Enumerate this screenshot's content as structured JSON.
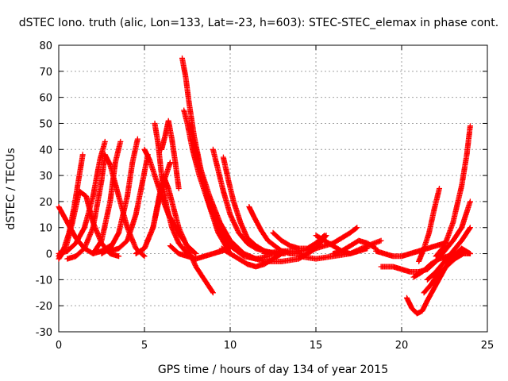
{
  "chart_data": {
    "type": "scatter",
    "title": "dSTEC Iono. truth (alic, Lon=133, Lat=-23, h=603): STEC-STEC_elemax in phase cont.",
    "xlabel": "GPS time / hours of day 134 of year 2015",
    "ylabel": "dSTEC  / TECUs",
    "xlim": [
      0,
      25
    ],
    "ylim": [
      -30,
      80
    ],
    "xticks": [
      "0",
      "5",
      "10",
      "15",
      "20",
      "25"
    ],
    "yticks": [
      "-30",
      "-20",
      "-10",
      "0",
      "10",
      "20",
      "30",
      "40",
      "50",
      "60",
      "70",
      "80"
    ],
    "grid": true,
    "legend": "none",
    "series_color": "#ff0000",
    "series": [
      {
        "x": [
          0.0,
          0.5,
          1.0,
          1.5,
          2.0,
          2.5,
          3.0
        ],
        "y": [
          18,
          12,
          6,
          2,
          0,
          1,
          3
        ]
      },
      {
        "x": [
          0.0,
          0.3,
          0.6,
          0.9,
          1.2,
          1.4
        ],
        "y": [
          -1,
          2,
          8,
          18,
          30,
          38
        ]
      },
      {
        "x": [
          0.0,
          0.4,
          0.8,
          1.2,
          1.6,
          2.0,
          2.5,
          3.0,
          3.5
        ],
        "y": [
          -2,
          2,
          12,
          24,
          22,
          12,
          4,
          0,
          -1
        ]
      },
      {
        "x": [
          0.0,
          0.5,
          1.0,
          1.5,
          2.0,
          2.4,
          2.7
        ],
        "y": [
          0,
          1,
          4,
          10,
          22,
          36,
          43
        ]
      },
      {
        "x": [
          0.5,
          1.0,
          1.5,
          2.0,
          2.5,
          2.7,
          3.0,
          3.5,
          4.0,
          4.5,
          5.0
        ],
        "y": [
          -2,
          -1,
          2,
          10,
          28,
          38,
          34,
          22,
          10,
          2,
          -1
        ]
      },
      {
        "x": [
          2.0,
          2.5,
          3.0,
          3.3,
          3.6
        ],
        "y": [
          0,
          5,
          20,
          35,
          43
        ]
      },
      {
        "x": [
          2.5,
          3.0,
          3.5,
          4.0,
          4.3,
          4.6
        ],
        "y": [
          0,
          2,
          8,
          22,
          35,
          44
        ]
      },
      {
        "x": [
          3.0,
          3.5,
          4.0,
          4.5,
          4.9,
          5.2
        ],
        "y": [
          1,
          2,
          5,
          15,
          28,
          38
        ]
      },
      {
        "x": [
          4.5,
          5.0,
          5.5,
          6.0,
          6.5
        ],
        "y": [
          0,
          2,
          10,
          25,
          35
        ]
      },
      {
        "x": [
          5.0,
          5.3,
          5.6,
          6.0,
          6.4,
          7.0,
          7.5,
          8.0
        ],
        "y": [
          40,
          36,
          30,
          22,
          15,
          8,
          3,
          0
        ]
      },
      {
        "x": [
          5.0,
          5.5,
          5.8,
          6.1,
          6.4,
          7.0,
          8.0,
          9.0
        ],
        "y": [
          2,
          10,
          20,
          30,
          25,
          10,
          -5,
          -15
        ]
      },
      {
        "x": [
          5.6,
          5.8,
          6.0,
          6.3,
          6.6,
          7.0,
          7.5
        ],
        "y": [
          50,
          42,
          30,
          18,
          10,
          4,
          0
        ]
      },
      {
        "x": [
          6.0,
          6.2,
          6.4,
          6.6,
          6.8,
          7.0
        ],
        "y": [
          40,
          45,
          51,
          44,
          35,
          25
        ]
      },
      {
        "x": [
          7.2,
          7.4,
          7.6,
          7.9,
          8.3,
          8.8,
          9.3,
          10.0
        ],
        "y": [
          75,
          68,
          58,
          45,
          32,
          18,
          8,
          0
        ]
      },
      {
        "x": [
          7.3,
          7.5,
          7.8,
          8.2,
          8.7,
          9.3,
          10.0,
          10.8,
          11.5
        ],
        "y": [
          55,
          50,
          40,
          30,
          20,
          10,
          3,
          -1,
          -2
        ]
      },
      {
        "x": [
          7.6,
          7.9,
          8.3,
          8.8,
          9.4,
          10.0,
          10.8,
          11.5,
          12.3
        ],
        "y": [
          50,
          42,
          32,
          22,
          12,
          5,
          0,
          -2,
          -1
        ]
      },
      {
        "x": [
          6.5,
          7.0,
          7.5,
          8.0,
          8.5,
          9.0,
          9.5,
          10.0
        ],
        "y": [
          3,
          0,
          -1,
          -2,
          -1,
          0,
          1,
          2
        ]
      },
      {
        "x": [
          9.0,
          9.3,
          9.6,
          10.0,
          10.5,
          11.0,
          11.5,
          12.0,
          12.8
        ],
        "y": [
          40,
          32,
          24,
          15,
          8,
          4,
          2,
          1,
          0
        ]
      },
      {
        "x": [
          9.6,
          9.9,
          10.2,
          10.6,
          11.0,
          11.5,
          12.0,
          12.5,
          13.2
        ],
        "y": [
          37,
          28,
          20,
          12,
          6,
          3,
          1,
          0,
          0
        ]
      },
      {
        "x": [
          11.1,
          11.4,
          11.8,
          12.2,
          12.6,
          13.0,
          13.5,
          14.2
        ],
        "y": [
          18,
          14,
          9,
          5,
          3,
          1,
          0,
          0
        ]
      },
      {
        "x": [
          9.5,
          10.0,
          10.5,
          11.0,
          11.5,
          12.0,
          12.5,
          13.0
        ],
        "y": [
          2,
          0,
          -2,
          -4,
          -5,
          -4,
          -2,
          0
        ]
      },
      {
        "x": [
          12.5,
          13.0,
          13.5,
          14.0,
          14.5,
          15.0,
          15.5
        ],
        "y": [
          8,
          5,
          3,
          2,
          2,
          4,
          7
        ]
      },
      {
        "x": [
          11.0,
          12.0,
          13.0,
          14.0,
          15.0,
          15.6
        ],
        "y": [
          -1,
          -3,
          -3,
          -2,
          2,
          7
        ]
      },
      {
        "x": [
          12.0,
          13.0,
          14.0,
          15.0,
          16.0,
          17.0,
          17.4
        ],
        "y": [
          0,
          1,
          1,
          2,
          4,
          8,
          10
        ]
      },
      {
        "x": [
          14.0,
          15.0,
          16.0,
          17.0,
          18.0,
          18.8
        ],
        "y": [
          -1,
          -2,
          -1,
          0,
          3,
          5
        ]
      },
      {
        "x": [
          15.0,
          16.0,
          16.5,
          17.0,
          17.5,
          18.0
        ],
        "y": [
          7,
          3,
          1,
          0,
          1,
          2
        ]
      },
      {
        "x": [
          16.0,
          16.5,
          17.0,
          17.5,
          18.0,
          18.5
        ],
        "y": [
          0,
          1,
          3,
          5,
          4,
          2
        ]
      },
      {
        "x": [
          18.5,
          19.0,
          19.5,
          20.0,
          20.5,
          21.0,
          21.5,
          22.0,
          22.5
        ],
        "y": [
          1,
          0,
          -1,
          -1,
          0,
          1,
          2,
          3,
          4
        ]
      },
      {
        "x": [
          18.8,
          19.5,
          20.0,
          20.5,
          21.0,
          21.5
        ],
        "y": [
          -5,
          -5,
          -6,
          -7,
          -7,
          -6
        ]
      },
      {
        "x": [
          20.3,
          20.6,
          20.9,
          21.2,
          21.5,
          22.0,
          22.5,
          23.0,
          23.5,
          24.0
        ],
        "y": [
          -17,
          -21,
          -23,
          -22,
          -18,
          -12,
          -6,
          -1,
          2,
          0
        ]
      },
      {
        "x": [
          20.7,
          21.2,
          21.7,
          22.2,
          22.7,
          23.2,
          23.7,
          24.0
        ],
        "y": [
          -9,
          -7,
          -4,
          -2,
          -1,
          0,
          1,
          0
        ]
      },
      {
        "x": [
          21.0,
          21.3,
          21.6,
          21.9,
          22.2
        ],
        "y": [
          -3,
          2,
          8,
          17,
          25
        ]
      },
      {
        "x": [
          21.3,
          21.7,
          22.1,
          22.6,
          23.1,
          23.6,
          24.0
        ],
        "y": [
          -15,
          -12,
          -8,
          -5,
          -2,
          0,
          0
        ]
      },
      {
        "x": [
          21.5,
          22.0,
          22.5,
          23.0,
          23.5,
          24.0
        ],
        "y": [
          -10,
          -7,
          -3,
          1,
          5,
          10
        ]
      },
      {
        "x": [
          21.5,
          22.0,
          22.5,
          23.0,
          23.5,
          24.0
        ],
        "y": [
          -6,
          -3,
          1,
          5,
          10,
          20
        ]
      },
      {
        "x": [
          22.0,
          22.5,
          23.0,
          23.5,
          23.8,
          24.0
        ],
        "y": [
          -1,
          3,
          12,
          26,
          38,
          49
        ]
      }
    ]
  }
}
